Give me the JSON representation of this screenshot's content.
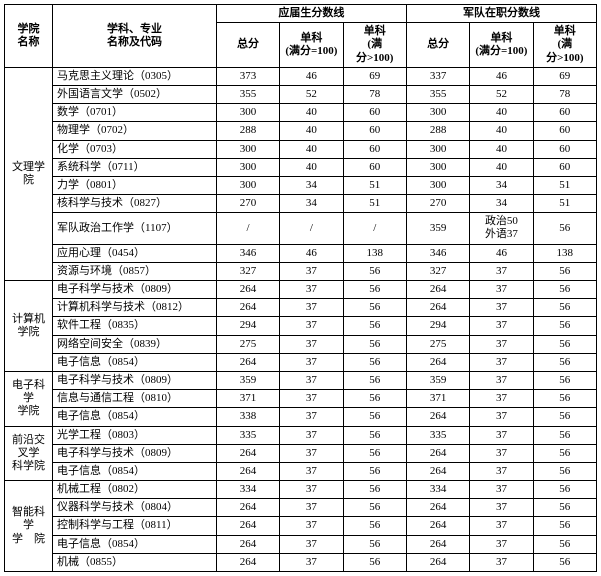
{
  "headers": {
    "college": "学院\n名称",
    "major": "学科、专业\n名称及代码",
    "group1": "应届生分数线",
    "group2": "军队在职分数线",
    "total": "总分",
    "sub100": "单科\n(满分=100)",
    "subgt100": "单科\n(满\n分>100)"
  },
  "colleges": [
    {
      "name": "文理学院",
      "rows": [
        {
          "m": "马克思主义理论（0305）",
          "a": [
            "373",
            "46",
            "69"
          ],
          "b": [
            "337",
            "46",
            "69"
          ]
        },
        {
          "m": "外国语言文学（0502）",
          "a": [
            "355",
            "52",
            "78"
          ],
          "b": [
            "355",
            "52",
            "78"
          ]
        },
        {
          "m": "数学（0701）",
          "a": [
            "300",
            "40",
            "60"
          ],
          "b": [
            "300",
            "40",
            "60"
          ]
        },
        {
          "m": "物理学（0702）",
          "a": [
            "288",
            "40",
            "60"
          ],
          "b": [
            "288",
            "40",
            "60"
          ]
        },
        {
          "m": "化学（0703）",
          "a": [
            "300",
            "40",
            "60"
          ],
          "b": [
            "300",
            "40",
            "60"
          ]
        },
        {
          "m": "系统科学（0711）",
          "a": [
            "300",
            "40",
            "60"
          ],
          "b": [
            "300",
            "40",
            "60"
          ]
        },
        {
          "m": "力学（0801）",
          "a": [
            "300",
            "34",
            "51"
          ],
          "b": [
            "300",
            "34",
            "51"
          ]
        },
        {
          "m": "核科学与技术（0827）",
          "a": [
            "270",
            "34",
            "51"
          ],
          "b": [
            "270",
            "34",
            "51"
          ]
        },
        {
          "m": "军队政治工作学（1107）",
          "a": [
            "/",
            "/",
            "/"
          ],
          "b": [
            "359",
            "政治50\n外语37",
            "56"
          ]
        },
        {
          "m": "应用心理（0454）",
          "a": [
            "346",
            "46",
            "138"
          ],
          "b": [
            "346",
            "46",
            "138"
          ]
        },
        {
          "m": "资源与环境（0857）",
          "a": [
            "327",
            "37",
            "56"
          ],
          "b": [
            "327",
            "37",
            "56"
          ]
        }
      ]
    },
    {
      "name": "计算机\n学院",
      "rows": [
        {
          "m": "电子科学与技术（0809）",
          "a": [
            "264",
            "37",
            "56"
          ],
          "b": [
            "264",
            "37",
            "56"
          ]
        },
        {
          "m": "计算机科学与技术（0812）",
          "a": [
            "264",
            "37",
            "56"
          ],
          "b": [
            "264",
            "37",
            "56"
          ]
        },
        {
          "m": "软件工程（0835）",
          "a": [
            "294",
            "37",
            "56"
          ],
          "b": [
            "294",
            "37",
            "56"
          ]
        },
        {
          "m": "网络空间安全（0839）",
          "a": [
            "275",
            "37",
            "56"
          ],
          "b": [
            "275",
            "37",
            "56"
          ]
        },
        {
          "m": "电子信息（0854）",
          "a": [
            "264",
            "37",
            "56"
          ],
          "b": [
            "264",
            "37",
            "56"
          ]
        }
      ]
    },
    {
      "name": "电子科学\n学院",
      "rows": [
        {
          "m": "电子科学与技术（0809）",
          "a": [
            "359",
            "37",
            "56"
          ],
          "b": [
            "359",
            "37",
            "56"
          ]
        },
        {
          "m": "信息与通信工程（0810）",
          "a": [
            "371",
            "37",
            "56"
          ],
          "b": [
            "371",
            "37",
            "56"
          ]
        },
        {
          "m": "电子信息（0854）",
          "a": [
            "338",
            "37",
            "56"
          ],
          "b": [
            "264",
            "37",
            "56"
          ]
        }
      ]
    },
    {
      "name": "前沿交叉学\n科学院",
      "rows": [
        {
          "m": "光学工程（0803）",
          "a": [
            "335",
            "37",
            "56"
          ],
          "b": [
            "335",
            "37",
            "56"
          ]
        },
        {
          "m": "电子科学与技术（0809）",
          "a": [
            "264",
            "37",
            "56"
          ],
          "b": [
            "264",
            "37",
            "56"
          ]
        },
        {
          "m": "电子信息（0854）",
          "a": [
            "264",
            "37",
            "56"
          ],
          "b": [
            "264",
            "37",
            "56"
          ]
        }
      ]
    },
    {
      "name": "智能科学\n学　院",
      "rows": [
        {
          "m": "机械工程（0802）",
          "a": [
            "334",
            "37",
            "56"
          ],
          "b": [
            "334",
            "37",
            "56"
          ]
        },
        {
          "m": "仪器科学与技术（0804）",
          "a": [
            "264",
            "37",
            "56"
          ],
          "b": [
            "264",
            "37",
            "56"
          ]
        },
        {
          "m": "控制科学与工程（0811）",
          "a": [
            "264",
            "37",
            "56"
          ],
          "b": [
            "264",
            "37",
            "56"
          ]
        },
        {
          "m": "电子信息（0854）",
          "a": [
            "264",
            "37",
            "56"
          ],
          "b": [
            "264",
            "37",
            "56"
          ]
        },
        {
          "m": "机械（0855）",
          "a": [
            "264",
            "37",
            "56"
          ],
          "b": [
            "264",
            "37",
            "56"
          ]
        }
      ]
    }
  ]
}
